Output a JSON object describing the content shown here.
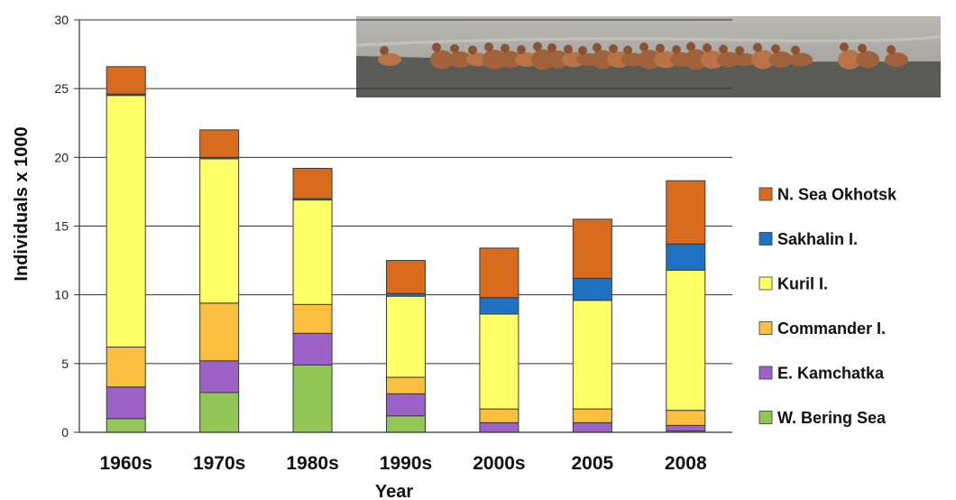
{
  "chart_data": {
    "type": "bar",
    "stacked": true,
    "categories": [
      "1960s",
      "1970s",
      "1980s",
      "1990s",
      "2000s",
      "2005",
      "2008"
    ],
    "series": [
      {
        "name": "W. Bering Sea",
        "color": "#92C757",
        "values": [
          1.0,
          2.9,
          4.9,
          1.2,
          0.0,
          0.0,
          0.1
        ]
      },
      {
        "name": "E. Kamchatka",
        "color": "#9D62C7",
        "values": [
          2.3,
          2.3,
          2.3,
          1.6,
          0.7,
          0.7,
          0.4
        ]
      },
      {
        "name": "Commander I.",
        "color": "#FABF3E",
        "values": [
          2.9,
          4.2,
          2.1,
          1.2,
          1.0,
          1.0,
          1.1
        ]
      },
      {
        "name": "Kuril I.",
        "color": "#FFFF66",
        "values": [
          18.3,
          10.5,
          7.6,
          5.9,
          6.9,
          7.9,
          10.2
        ]
      },
      {
        "name": "Sakhalin I.",
        "color": "#1F72C1",
        "values": [
          0.1,
          0.1,
          0.1,
          0.2,
          1.2,
          1.6,
          1.9
        ]
      },
      {
        "name": "N. Sea Okhotsk",
        "color": "#D96B1E",
        "values": [
          2.0,
          2.0,
          2.2,
          2.4,
          3.6,
          4.3,
          4.6
        ]
      }
    ],
    "xlabel": "Year",
    "ylabel": "Individuals x 1000",
    "ylim": [
      0,
      30
    ],
    "yticks": [
      0,
      5,
      10,
      15,
      20,
      25,
      30
    ],
    "grid": "horizontal",
    "legend_position": "right",
    "inset_photo": "sea-lions-on-beach"
  }
}
